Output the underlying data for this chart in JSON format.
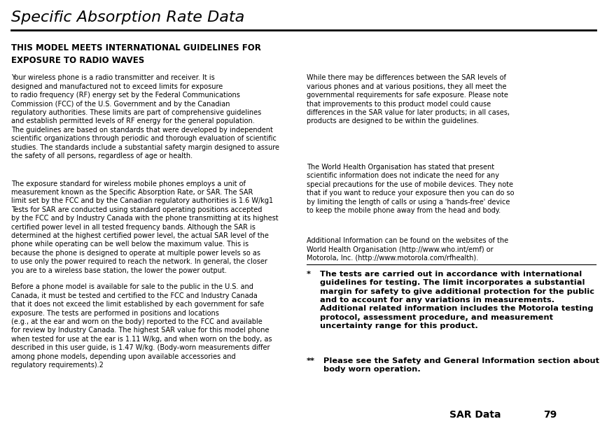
{
  "title": "Specific Absorption Rate Data",
  "bg_color": "#ffffff",
  "text_color": "#000000",
  "title_fontsize": 16,
  "header_text": "THIS MODEL MEETS INTERNATIONAL GUIDELINES FOR\nEXPOSURE TO RADIO WAVES",
  "left_para1": "Your wireless phone is a radio transmitter and receiver. It is\ndesigned and manufactured not to exceed limits for exposure\nto radio frequency (RF) energy set by the Federal Communications\nCommission (FCC) of the U.S. Government and by the Canadian\nregulatory authorities. These limits are part of comprehensive guidelines\nand establish permitted levels of RF energy for the general population.\nThe guidelines are based on standards that were developed by independent\nscientific organizations through periodic and thorough evaluation of scientific\nstudies. The standards include a substantial safety margin designed to assure\nthe safety of all persons, regardless of age or health.",
  "left_para2": "The exposure standard for wireless mobile phones employs a unit of\nmeasurement known as the Specific Absorption Rate, or SAR. The SAR\nlimit set by the FCC and by the Canadian regulatory authorities is 1.6 W/kg1\nTests for SAR are conducted using standard operating positions accepted\nby the FCC and by Industry Canada with the phone transmitting at its highest\ncertified power level in all tested frequency bands. Although the SAR is\ndetermined at the highest certified power level, the actual SAR level of the\nphone while operating can be well below the maximum value. This is\nbecause the phone is designed to operate at multiple power levels so as\nto use only the power required to reach the network. In general, the closer\nyou are to a wireless base station, the lower the power output.",
  "left_para3": "Before a phone model is available for sale to the public in the U.S. and\nCanada, it must be tested and certified to the FCC and Industry Canada\nthat it does not exceed the limit established by each government for safe\nexposure. The tests are performed in positions and locations\n(e.g., at the ear and worn on the body) reported to the FCC and available\nfor review by Industry Canada. The highest SAR value for this model phone\nwhen tested for use at the ear is 1.11 W/kg, and when worn on the body, as\ndescribed in this user guide, is 1.47 W/kg. (Body-worn measurements differ\namong phone models, depending upon available accessories and\nregulatory requirements).2",
  "right_para1": "While there may be differences between the SAR levels of\nvarious phones and at various positions, they all meet the\ngovernmental requirements for safe exposure. Please note\nthat improvements to this product model could cause\ndifferences in the SAR value for later products; in all cases,\nproducts are designed to be within the guidelines.",
  "right_para2": "The World Health Organisation has stated that present\nscientific information does not indicate the need for any\nspecial precautions for the use of mobile devices. They note\nthat if you want to reduce your exposure then you can do so\nby limiting the length of calls or using a 'hands-free' device\nto keep the mobile phone away from the head and body.",
  "right_para3": "Additional Information can be found on the websites of the\nWorld Health Organisation (http://www.who.int/emf) or\nMotorola, Inc. (http://www.motorola.com/rfhealth).",
  "fn1_text": "   The tests are carried out in accordance with international\n   guidelines for testing. The limit incorporates a substantial\n   margin for safety to give additional protection for the public\n   and to account for any variations in measurements.\n   Additional related information includes the Motorola testing\n   protocol, assessment procedure, and measurement\n   uncertainty range for this product.",
  "fn2_text": "      Please see the Safety and General Information section about\n   body worn operation.",
  "footer_label": "SAR Data",
  "footer_page": "79",
  "col_split": 0.495
}
